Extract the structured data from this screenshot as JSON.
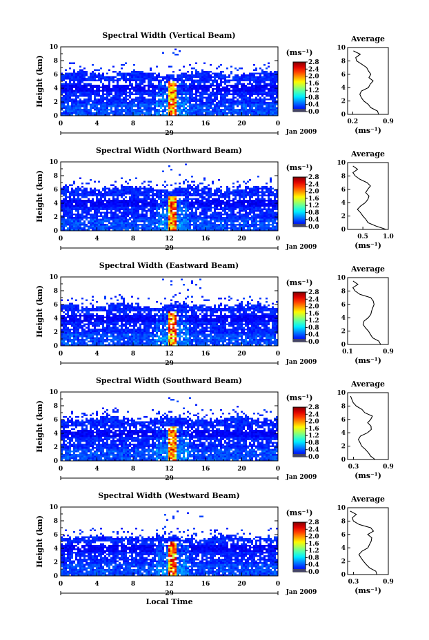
{
  "chart_data": [
    {
      "type": "heatmap",
      "title": "Spectral Width (Vertical Beam)",
      "ylabel": "Height (km)",
      "ylim": [
        0,
        10
      ],
      "yticks": [
        "0",
        "2",
        "4",
        "6",
        "8",
        "10"
      ],
      "xlim": [
        0,
        24
      ],
      "xticks": [
        "0",
        "4",
        "8",
        "12",
        "16",
        "20",
        "0"
      ],
      "day_label": "29",
      "date_label": "Jan 2009",
      "colorbar": {
        "unit": "(ms⁻¹)",
        "ticks": [
          "2.8",
          "2.4",
          "2.0",
          "1.6",
          "1.2",
          "0.8",
          "0.4",
          "0.0"
        ],
        "range": [
          0,
          2.8
        ]
      },
      "average": {
        "title": "Average",
        "unit": "(ms⁻¹)",
        "xticks": [
          "0.2",
          "0.9"
        ],
        "xlim": [
          0.1,
          0.9
        ]
      },
      "echo_top_km": 6.3,
      "profile": [
        [
          0,
          0.7
        ],
        [
          0.5,
          0.68
        ],
        [
          1,
          0.55
        ],
        [
          1.5,
          0.5
        ],
        [
          2,
          0.42
        ],
        [
          2.5,
          0.38
        ],
        [
          3,
          0.35
        ],
        [
          3.5,
          0.38
        ],
        [
          4,
          0.5
        ],
        [
          4.5,
          0.55
        ],
        [
          5,
          0.6
        ],
        [
          5.5,
          0.52
        ],
        [
          6,
          0.55
        ],
        [
          6.5,
          0.5
        ],
        [
          7,
          0.48
        ],
        [
          7.5,
          0.38
        ],
        [
          8,
          0.28
        ],
        [
          8.5,
          0.25
        ],
        [
          9,
          0.35
        ],
        [
          9.5,
          0.22
        ]
      ]
    },
    {
      "type": "heatmap",
      "title": "Spectral Width (Northward Beam)",
      "ylabel": "Height (km)",
      "ylim": [
        0,
        10
      ],
      "yticks": [
        "0",
        "2",
        "4",
        "6",
        "8",
        "10"
      ],
      "xlim": [
        0,
        24
      ],
      "xticks": [
        "0",
        "4",
        "8",
        "12",
        "16",
        "20",
        "0"
      ],
      "day_label": "29",
      "date_label": "Jan 2009",
      "colorbar": {
        "unit": "(ms⁻¹)",
        "ticks": [
          "2.8",
          "2.4",
          "2.0",
          "1.6",
          "1.2",
          "0.8",
          "0.4",
          "0.0"
        ],
        "range": [
          0,
          2.8
        ]
      },
      "average": {
        "title": "Average",
        "unit": "(ms⁻¹)",
        "xticks": [
          "0.5",
          "1.0"
        ],
        "xlim": [
          0.2,
          1.0
        ]
      },
      "echo_top_km": 6.3,
      "profile": [
        [
          0,
          0.95
        ],
        [
          0.5,
          0.75
        ],
        [
          1,
          0.6
        ],
        [
          1.5,
          0.55
        ],
        [
          2,
          0.5
        ],
        [
          2.5,
          0.45
        ],
        [
          3,
          0.4
        ],
        [
          3.5,
          0.45
        ],
        [
          4,
          0.55
        ],
        [
          4.5,
          0.6
        ],
        [
          5,
          0.62
        ],
        [
          5.5,
          0.55
        ],
        [
          6,
          0.6
        ],
        [
          6.5,
          0.65
        ],
        [
          7,
          0.58
        ],
        [
          7.5,
          0.45
        ],
        [
          8,
          0.35
        ],
        [
          8.5,
          0.3
        ],
        [
          9,
          0.4
        ],
        [
          9.5,
          0.3
        ]
      ]
    },
    {
      "type": "heatmap",
      "title": "Spectral Width (Eastward Beam)",
      "ylabel": "Height (km)",
      "ylim": [
        0,
        10
      ],
      "yticks": [
        "0",
        "2",
        "4",
        "6",
        "8",
        "10"
      ],
      "xlim": [
        0,
        24
      ],
      "xticks": [
        "0",
        "4",
        "8",
        "12",
        "16",
        "20",
        "0"
      ],
      "day_label": "29",
      "date_label": "Jan 2009",
      "colorbar": {
        "unit": "(ms⁻¹)",
        "ticks": [
          "2.8",
          "2.4",
          "2.0",
          "1.6",
          "1.2",
          "0.8",
          "0.4",
          "0.0"
        ],
        "range": [
          0,
          2.8
        ]
      },
      "average": {
        "title": "Average",
        "unit": "(ms⁻¹)",
        "xticks": [
          "0.1",
          "0.9"
        ],
        "xlim": [
          0.1,
          0.9
        ]
      },
      "echo_top_km": 6.0,
      "profile": [
        [
          0,
          0.75
        ],
        [
          0.5,
          0.72
        ],
        [
          1,
          0.6
        ],
        [
          1.5,
          0.55
        ],
        [
          2,
          0.5
        ],
        [
          2.5,
          0.45
        ],
        [
          3,
          0.4
        ],
        [
          3.5,
          0.42
        ],
        [
          4,
          0.5
        ],
        [
          4.5,
          0.55
        ],
        [
          5,
          0.58
        ],
        [
          5.5,
          0.6
        ],
        [
          6,
          0.62
        ],
        [
          6.5,
          0.6
        ],
        [
          7,
          0.55
        ],
        [
          7.5,
          0.35
        ],
        [
          8,
          0.25
        ],
        [
          8.5,
          0.2
        ],
        [
          9,
          0.3
        ],
        [
          9.5,
          0.2
        ]
      ]
    },
    {
      "type": "heatmap",
      "title": "Spectral Width (Southward Beam)",
      "ylabel": "Height (km)",
      "ylim": [
        0,
        10
      ],
      "yticks": [
        "0",
        "2",
        "4",
        "6",
        "8",
        "10"
      ],
      "xlim": [
        0,
        24
      ],
      "xticks": [
        "0",
        "4",
        "8",
        "12",
        "16",
        "20",
        "0"
      ],
      "day_label": "29",
      "date_label": "Jan 2009",
      "colorbar": {
        "unit": "(ms⁻¹)",
        "ticks": [
          "2.8",
          "2.4",
          "2.0",
          "1.6",
          "1.2",
          "0.8",
          "0.4",
          "0.0"
        ],
        "range": [
          0,
          2.8
        ]
      },
      "average": {
        "title": "Average",
        "unit": "(ms⁻¹)",
        "xticks": [
          "0.3",
          "0.9"
        ],
        "xlim": [
          0.2,
          0.9
        ]
      },
      "echo_top_km": 6.3,
      "profile": [
        [
          0,
          0.68
        ],
        [
          0.5,
          0.6
        ],
        [
          1,
          0.55
        ],
        [
          1.5,
          0.5
        ],
        [
          2,
          0.45
        ],
        [
          2.5,
          0.42
        ],
        [
          3,
          0.38
        ],
        [
          3.5,
          0.42
        ],
        [
          4,
          0.55
        ],
        [
          4.5,
          0.6
        ],
        [
          5,
          0.6
        ],
        [
          5.5,
          0.55
        ],
        [
          6,
          0.6
        ],
        [
          6.5,
          0.62
        ],
        [
          7,
          0.5
        ],
        [
          7.5,
          0.45
        ],
        [
          8,
          0.35
        ],
        [
          8.5,
          0.3
        ],
        [
          9,
          0.28
        ],
        [
          9.5,
          0.25
        ]
      ]
    },
    {
      "type": "heatmap",
      "title": "Spectral Width (Westward Beam)",
      "ylabel": "Height (km)",
      "ylim": [
        0,
        10
      ],
      "yticks": [
        "0",
        "2",
        "4",
        "6",
        "8",
        "10"
      ],
      "xlim": [
        0,
        24
      ],
      "xticks": [
        "0",
        "4",
        "8",
        "12",
        "16",
        "20",
        "0"
      ],
      "day_label": "29",
      "date_label": "Jan 2009",
      "xlabel": "Local Time",
      "colorbar": {
        "unit": "(ms⁻¹)",
        "ticks": [
          "2.8",
          "2.4",
          "2.0",
          "1.6",
          "1.2",
          "0.8",
          "0.4",
          "0.0"
        ],
        "range": [
          0,
          2.8
        ]
      },
      "average": {
        "title": "Average",
        "unit": "(ms⁻¹)",
        "xticks": [
          "0.3",
          "0.9"
        ],
        "xlim": [
          0.2,
          0.9
        ]
      },
      "echo_top_km": 5.8,
      "profile": [
        [
          0,
          0.7
        ],
        [
          0.5,
          0.68
        ],
        [
          1,
          0.58
        ],
        [
          1.5,
          0.52
        ],
        [
          2,
          0.48
        ],
        [
          2.5,
          0.44
        ],
        [
          3,
          0.4
        ],
        [
          3.5,
          0.45
        ],
        [
          4,
          0.55
        ],
        [
          4.5,
          0.58
        ],
        [
          5,
          0.6
        ],
        [
          5.5,
          0.62
        ],
        [
          6,
          0.55
        ],
        [
          6.5,
          0.65
        ],
        [
          7,
          0.6
        ],
        [
          7.5,
          0.4
        ],
        [
          8,
          0.3
        ],
        [
          8.5,
          0.28
        ],
        [
          9,
          0.35
        ],
        [
          9.5,
          0.25
        ]
      ]
    }
  ]
}
